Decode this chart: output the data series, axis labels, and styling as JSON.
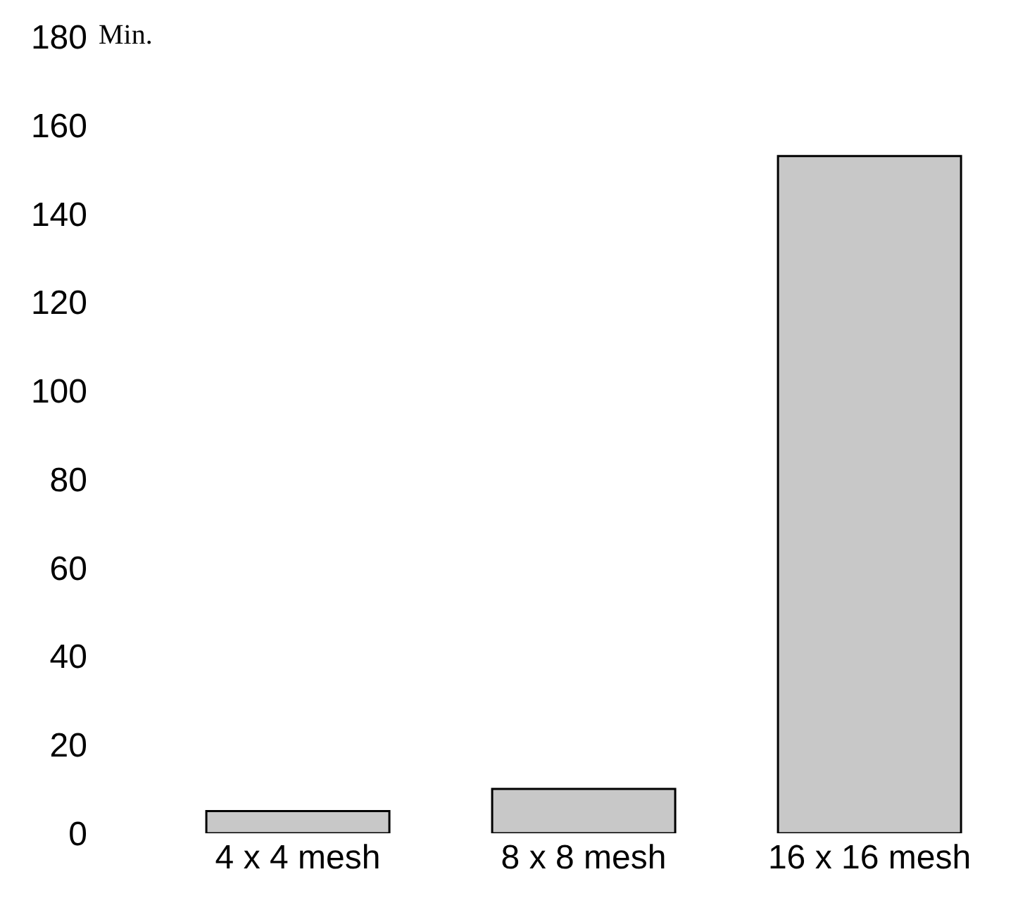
{
  "chart_data": {
    "type": "bar",
    "ylabel": "Min.",
    "categories": [
      "4 x 4 mesh",
      "8 x 8 mesh",
      "16 x 16 mesh"
    ],
    "values": [
      5,
      10,
      153
    ],
    "color": "#c8c8c8",
    "ylim": [
      0,
      180
    ],
    "yticks": [
      0,
      20,
      40,
      60,
      80,
      100,
      120,
      140,
      160,
      180
    ],
    "grid": false,
    "legend": false
  }
}
